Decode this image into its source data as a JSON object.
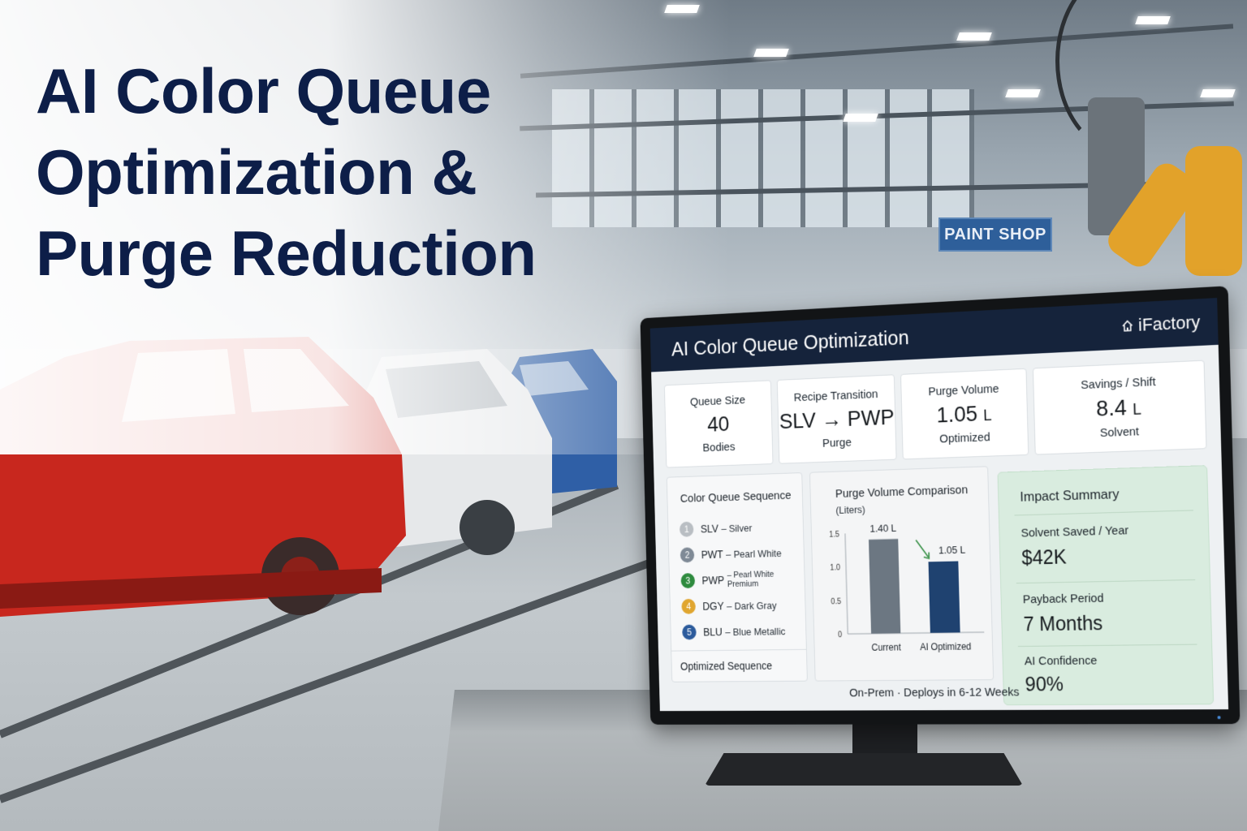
{
  "headline": {
    "line1": "AI Color Queue",
    "line2": "Optimization &",
    "line3": "Purge Reduction"
  },
  "scene": {
    "sign_text": "PAINT SHOP",
    "body_colors": [
      "#c8271e",
      "#e6e8ea",
      "#2f5fa6"
    ]
  },
  "dashboard": {
    "title": "AI Color Queue Optimization",
    "brand": "iFactory",
    "brand_icon": "home-icon",
    "kpis": [
      {
        "label": "Queue Size",
        "value": "40",
        "unit": "",
        "sub": "Bodies"
      },
      {
        "label": "Recipe Transition",
        "value": "SLV → PWP",
        "unit": "",
        "sub": "Purge"
      },
      {
        "label": "Purge Volume",
        "value": "1.05",
        "unit": "L",
        "sub": "Optimized"
      },
      {
        "label": "Savings / Shift",
        "value": "8.4",
        "unit": "L",
        "sub": "Solvent"
      }
    ],
    "queue": {
      "title": "Color Queue Sequence",
      "items": [
        {
          "num": "1",
          "code": "SLV",
          "name": "– Silver",
          "color": "#b9bec3"
        },
        {
          "num": "2",
          "code": "PWT",
          "name": "– Pearl White",
          "color": "#7f8a96"
        },
        {
          "num": "3",
          "code": "PWP",
          "name": "– Pearl White Premium",
          "color": "#2e8b3e"
        },
        {
          "num": "4",
          "code": "DGY",
          "name": "– Dark Gray",
          "color": "#e0a630"
        },
        {
          "num": "5",
          "code": "BLU",
          "name": "– Blue Metallic",
          "color": "#2c5b9c"
        }
      ],
      "footer": "Optimized Sequence"
    },
    "chart_title": "Purge Volume Comparison",
    "chart_subtitle": "(Liters)",
    "footer_text": "On-Prem · Deploys in 6-12 Weeks",
    "impact": {
      "title": "Impact Summary",
      "rows": [
        {
          "label": "Solvent Saved / Year",
          "value": "$42K"
        },
        {
          "label": "Payback Period",
          "value": "7 Months"
        },
        {
          "label": "AI Confidence",
          "value": "90%"
        }
      ]
    }
  },
  "chart_data": {
    "type": "bar",
    "title": "Purge Volume Comparison",
    "ylabel": "(Liters)",
    "categories": [
      "Current",
      "AI Optimized"
    ],
    "values": [
      1.4,
      1.05
    ],
    "value_labels": [
      "1.40 L",
      "1.05 L"
    ],
    "yticks": [
      "1.5",
      "1.0",
      "0.5",
      "0"
    ],
    "ylim": [
      0,
      1.5
    ],
    "colors": [
      "#6c7782",
      "#1f4270"
    ],
    "grid": false,
    "annotation": "down-arrow"
  }
}
